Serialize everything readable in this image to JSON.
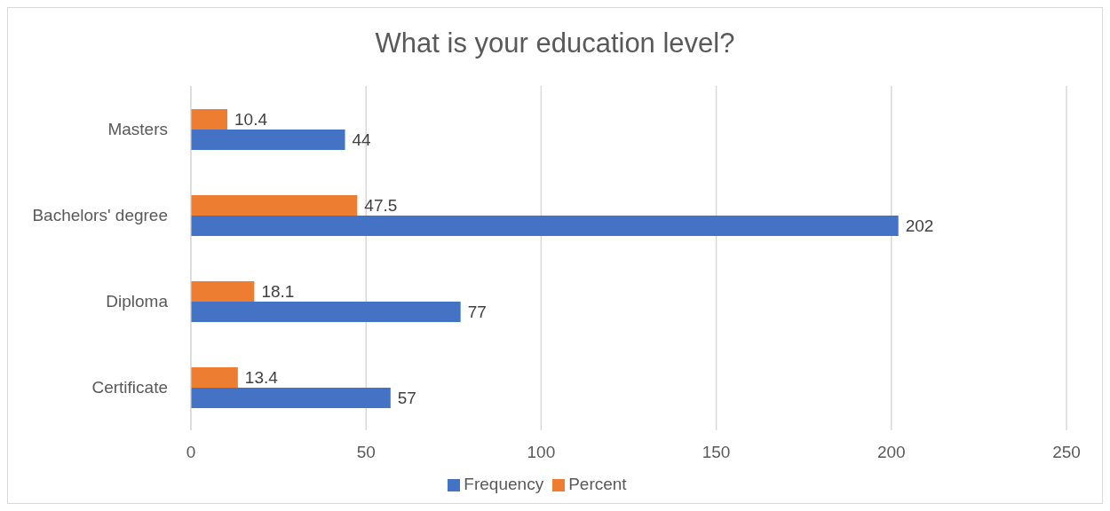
{
  "chart_data": {
    "type": "bar",
    "orientation": "horizontal",
    "title": "What is your education level?",
    "categories": [
      "Masters",
      "Bachelors' degree",
      "Diploma",
      "Certificate"
    ],
    "series": [
      {
        "name": "Percent",
        "color": "#ed7d31",
        "values": [
          10.4,
          47.5,
          18.1,
          13.4
        ]
      },
      {
        "name": "Frequency",
        "color": "#4472c4",
        "values": [
          44,
          202,
          77,
          57
        ]
      }
    ],
    "xlim": [
      0,
      250
    ],
    "xticks": [
      0,
      50,
      100,
      150,
      200,
      250
    ],
    "grid": "x",
    "legend": "bottom",
    "data_labels": true
  }
}
